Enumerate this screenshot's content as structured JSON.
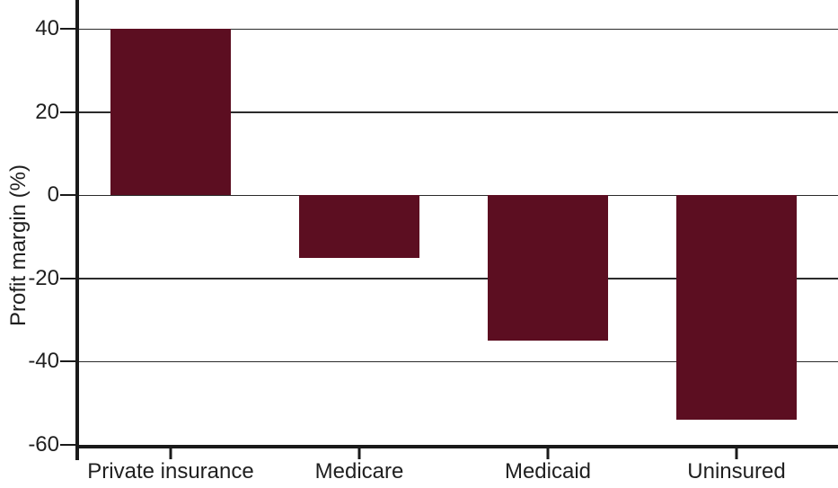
{
  "chart_data": {
    "type": "bar",
    "categories": [
      "Private insurance",
      "Medicare",
      "Medicaid",
      "Uninsured"
    ],
    "values": [
      40,
      -15,
      -35,
      -54
    ],
    "title": "",
    "xlabel": "",
    "ylabel": "Profit margin (%)",
    "ylim": [
      -60,
      47
    ],
    "yticks": [
      40,
      20,
      0,
      -20,
      -40,
      -60
    ],
    "gridline_values": [
      40,
      20,
      0,
      -20,
      -40
    ],
    "grid": true,
    "legend": "none",
    "bar_color": "#5c0e21",
    "axis_color": "#1a1a1a",
    "grid_color": "#2b2b2b",
    "text_color": "#1f1f1f",
    "background_color": "#ffffff"
  }
}
